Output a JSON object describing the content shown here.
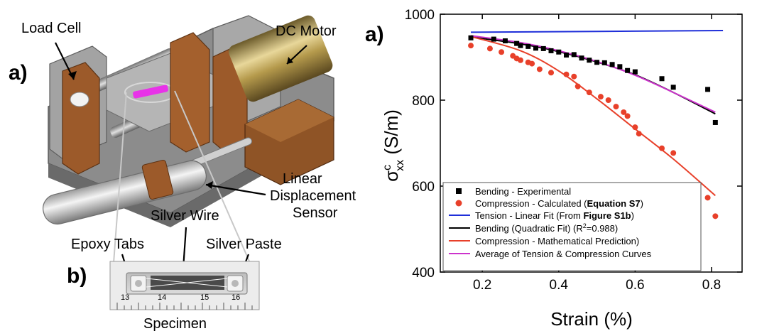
{
  "left_figure": {
    "panel_a_label": "a)",
    "panel_b_label": "b)",
    "callouts": {
      "load_cell": "Load Cell",
      "dc_motor": "DC Motor",
      "linear_line1": "Linear",
      "linear_line2": "Displacement",
      "linear_line3": "Sensor",
      "silver_wire": "Silver Wire",
      "epoxy_tabs": "Epoxy Tabs",
      "silver_paste": "Silver Paste",
      "specimen": "Specimen"
    },
    "ruler_numbers": [
      "13",
      "14",
      "15",
      "16"
    ]
  },
  "chart_data": {
    "type": "line",
    "panel_label": "a)",
    "title": "",
    "xlabel": "Strain (%)",
    "ylabel": "σ",
    "ylabel_sup": "c",
    "ylabel_sub": "xx",
    "ylabel_unit": "(S/m)",
    "xlim": [
      0.09,
      0.88
    ],
    "ylim": [
      400,
      1000
    ],
    "xticks": [
      0.2,
      0.4,
      0.6,
      0.8
    ],
    "yticks": [
      400,
      600,
      800,
      1000
    ],
    "grid": false,
    "legend_placement": "bottom-left",
    "series": [
      {
        "name": "Bending - Experimental",
        "kind": "scatter-square",
        "color": "#000000",
        "x": [
          0.17,
          0.23,
          0.26,
          0.29,
          0.3,
          0.32,
          0.34,
          0.36,
          0.38,
          0.4,
          0.42,
          0.44,
          0.46,
          0.48,
          0.5,
          0.52,
          0.54,
          0.56,
          0.58,
          0.6,
          0.67,
          0.7,
          0.79,
          0.81
        ],
        "y": [
          945,
          942,
          938,
          932,
          927,
          925,
          921,
          920,
          915,
          912,
          905,
          906,
          898,
          893,
          888,
          887,
          883,
          878,
          869,
          866,
          850,
          830,
          825,
          748
        ]
      },
      {
        "name_parts": [
          "Compression - Calculated (",
          "Equation S7",
          ")"
        ],
        "kind": "scatter-circle",
        "color": "#e8402a",
        "x": [
          0.17,
          0.22,
          0.25,
          0.28,
          0.29,
          0.3,
          0.32,
          0.33,
          0.35,
          0.38,
          0.42,
          0.44,
          0.45,
          0.48,
          0.51,
          0.53,
          0.55,
          0.57,
          0.58,
          0.6,
          0.61,
          0.67,
          0.7,
          0.79,
          0.81
        ],
        "y": [
          927,
          920,
          912,
          903,
          897,
          893,
          888,
          885,
          872,
          864,
          860,
          855,
          832,
          818,
          808,
          800,
          785,
          772,
          763,
          737,
          722,
          688,
          677,
          573,
          530
        ]
      },
      {
        "name_parts": [
          "Tension - Linear Fit  (From ",
          "Figure S1b",
          ")"
        ],
        "kind": "line",
        "color": "#1f2fd9",
        "x": [
          0.17,
          0.83
        ],
        "y": [
          958,
          962
        ]
      },
      {
        "name": "Bending (Quadratic Fit)",
        "r2_label": "(R",
        "r2_sup": "2",
        "r2_value": "=0.988)",
        "kind": "line",
        "color": "#000000",
        "x": [
          0.17,
          0.3,
          0.4,
          0.5,
          0.6,
          0.7,
          0.81
        ],
        "y": [
          947,
          931,
          913,
          889,
          859,
          818,
          768
        ]
      },
      {
        "name": "Compression - Mathematical Prediction)",
        "kind": "line",
        "color": "#e8402a",
        "x": [
          0.17,
          0.3,
          0.4,
          0.5,
          0.6,
          0.7,
          0.81
        ],
        "y": [
          948,
          915,
          868,
          803,
          733,
          663,
          578
        ]
      },
      {
        "name": "Average of Tension & Compression Curves",
        "kind": "line",
        "color": "#cc33cc",
        "x": [
          0.17,
          0.3,
          0.4,
          0.5,
          0.6,
          0.7,
          0.81
        ],
        "y": [
          950,
          934,
          915,
          890,
          858,
          818,
          772
        ]
      }
    ]
  }
}
